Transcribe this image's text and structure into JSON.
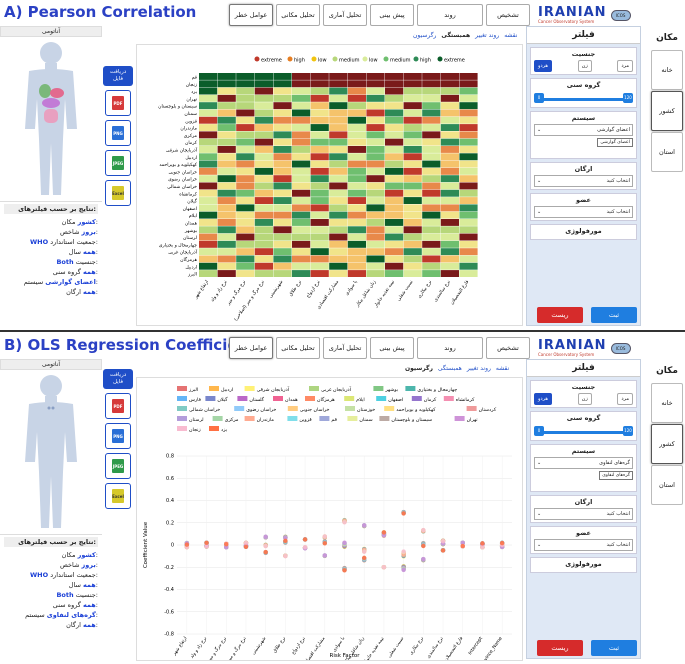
{
  "panels": [
    {
      "id": "A",
      "title": "A) Pearson Correlation",
      "tabs": [
        "عوامل خطر",
        "تحلیل مکانی",
        "تحلیل آماری",
        "پیش بینی",
        "روند",
        "تشخیص"
      ],
      "subtabs": [
        "نقشه",
        "روند تغییر",
        "همبستگی",
        "رگرسیون"
      ],
      "active_subtab": "همبستگی",
      "sidebar_head": "آناتومی",
      "results_head": "نتایج بر حسب فیلترهای:",
      "results": [
        {
          "k": "مکان:",
          "v": "کشور"
        },
        {
          "k": "شاخص:",
          "v": "بروز"
        },
        {
          "k": "جمعیت استاندارد:",
          "v": "WHO"
        },
        {
          "k": "سال:",
          "v": "همه"
        },
        {
          "k": "جنسیت:",
          "v": "Both"
        },
        {
          "k": "گروه سنی:",
          "v": "همه"
        },
        {
          "k": "سیستم:",
          "v": "اعضای گوارشی"
        },
        {
          "k": "ارگان:",
          "v": "همه"
        }
      ],
      "system_select": "اعضای گوارشی",
      "system_chip": "اعضای گوارشی"
    },
    {
      "id": "B",
      "title": "B) OLS Regression Coefficients",
      "tabs": [
        "عوامل خطر",
        "تحلیل مکانی",
        "تحلیل آماری",
        "پیش بینی",
        "روند",
        "تشخیص"
      ],
      "subtabs": [
        "نقشه",
        "روند تغییر",
        "همبستگی",
        "رگرسیون"
      ],
      "active_subtab": "رگرسیون",
      "sidebar_head": "آناتومی",
      "results_head": "نتایج بر حسب فیلترهای:",
      "results": [
        {
          "k": "مکان:",
          "v": "کشور"
        },
        {
          "k": "شاخص:",
          "v": "بروز"
        },
        {
          "k": "جمعیت استاندارد:",
          "v": "WHO"
        },
        {
          "k": "سال:",
          "v": "همه"
        },
        {
          "k": "جنسیت:",
          "v": "Both"
        },
        {
          "k": "گروه سنی:",
          "v": "همه"
        },
        {
          "k": "سیستم:",
          "v": "گره‌های لنفاوی"
        },
        {
          "k": "ارگان:",
          "v": "همه"
        }
      ],
      "system_select": "گره‌های لنفاوی",
      "system_chip": "گره‌های لنفاوی"
    }
  ],
  "logo": {
    "text": "IRANIAN",
    "sub": "Cancer Observatory System",
    "badge": "ICOS"
  },
  "export": {
    "head": "دریافت فایل",
    "items": [
      {
        "label": "PDF",
        "color": "#d63a3a"
      },
      {
        "label": "PNG",
        "color": "#2a6fd6"
      },
      {
        "label": "JPEG",
        "color": "#2f9a4a"
      },
      {
        "label": "Excel",
        "color": "#d6c92a"
      }
    ]
  },
  "filter": {
    "title": "فیلتر",
    "gender_label": "جنسیت",
    "gender_opts": [
      "مرد",
      "زن",
      "هردو"
    ],
    "age_label": "گروه سنی",
    "age_min": "0",
    "age_max": "120",
    "system_label": "سیستم",
    "organ_label": "ارگان",
    "organ_select": "انتخاب کنید",
    "member_label": "عضو",
    "member_select": "انتخاب کنید",
    "morph_label": "مورفولوژی",
    "reset": "ریست",
    "apply": "ثبت"
  },
  "vtabs": {
    "title": "مکان",
    "items": [
      "خانه",
      "کشور",
      "استان"
    ],
    "active": "کشور"
  },
  "heatmap": {
    "legend": [
      "extreme",
      "high",
      "low",
      "medium",
      "low",
      "medium",
      "high",
      "extreme"
    ],
    "legend_colors": [
      "#c0392b",
      "#e67e22",
      "#f1c40f",
      "#b7d77a",
      "#d9ec9a",
      "#6fbf6f",
      "#2e8b57",
      "#0b5d2a"
    ],
    "rows": [
      "قم",
      "زنجان",
      "یزد",
      "تهران",
      "سیستان و بلوچستان",
      "سمنان",
      "قزوین",
      "مازندران",
      "مرکزی",
      "کرمان",
      "آذربایجان شرقی",
      "اردبیل",
      "کهکیلویه و بویراحمد",
      "خراسان جنوبی",
      "خراسان رضوی",
      "خراسان شمالی",
      "کرمانشاه",
      "گیلان",
      "اصفهان",
      "ایلام",
      "همدان",
      "بوشهر",
      "لرستان",
      "چهارمحال و بختیاری",
      "آذربایجان غربی",
      "هرمزگان",
      "اردبیل",
      "البرز"
    ],
    "cols": [
      "ارتفاع شهر",
      "نرخ زاد و ولد",
      "نرخ مرگ و میر",
      "نرخ مرگ و میر (اصلاحی)",
      "شهرنشینی",
      "نرخ طلاق",
      "نرخ ازدواج",
      "مشارکت اقتصادی",
      "با سوادی",
      "زنان شاغل بیکار",
      "نیمه تغذیه خانوار",
      "نسبت شغلی",
      "نرخ بیکاری",
      "نرخ سالمندی",
      "فارغ التحصیلان"
    ]
  },
  "scatter": {
    "type": "scatter",
    "ylabel": "Coefficient Value",
    "xlabel": "Risk Factor",
    "ylim": [
      -0.8,
      0.8
    ],
    "yticks": [
      "0.8",
      "0.6",
      "0.4",
      "0.2",
      "0",
      "-0.2",
      "-0.4",
      "-0.6",
      "-0.8"
    ],
    "categories": [
      "ارتفاع شهر",
      "نرخ زاد و ولد",
      "نرخ مرگ و میر",
      "نرخ مرگ و میر (اصلاحی)",
      "شهرنشینی",
      "نرخ طلاق",
      "نرخ ازدواج",
      "مشارکت اقتصادی",
      "با سوادی",
      "زنان شاغل بیکار",
      "نیمه تغذیه خانوار",
      "نسبت شغلی",
      "نرخ بیکاری",
      "نرخ سالمندی",
      "فارغ التحصیلان",
      "Intercept",
      "Province_Name"
    ],
    "legend": [
      {
        "name": "البرز",
        "color": "#e57373"
      },
      {
        "name": "اردبیل",
        "color": "#ffb74d"
      },
      {
        "name": "آذربایجان شرقی",
        "color": "#fff176"
      },
      {
        "name": "آذربایجان غربی",
        "color": "#aed581"
      },
      {
        "name": "بوشهر",
        "color": "#81c784"
      },
      {
        "name": "چهارمحال و بختیاری",
        "color": "#4db6ac"
      },
      {
        "name": "فارس",
        "color": "#64b5f6"
      },
      {
        "name": "گیلان",
        "color": "#7986cb"
      },
      {
        "name": "گلستان",
        "color": "#ba68c8"
      },
      {
        "name": "همدان",
        "color": "#f06292"
      },
      {
        "name": "هرمزگان",
        "color": "#ff8a65"
      },
      {
        "name": "ایلام",
        "color": "#dce775"
      },
      {
        "name": "اصفهان",
        "color": "#4dd0e1"
      },
      {
        "name": "کرمان",
        "color": "#9575cd"
      },
      {
        "name": "کرمانشاه",
        "color": "#f48fb1"
      },
      {
        "name": "خراسان شمالی",
        "color": "#80cbc4"
      },
      {
        "name": "خراسان رضوی",
        "color": "#90caf9"
      },
      {
        "name": "خراسان جنوبی",
        "color": "#ffcc80"
      },
      {
        "name": "خوزستان",
        "color": "#c5e1a5"
      },
      {
        "name": "کهکیلویه و بویراحمد",
        "color": "#ffe082"
      },
      {
        "name": "کردستان",
        "color": "#ef9a9a"
      },
      {
        "name": "لرستان",
        "color": "#b39ddb"
      },
      {
        "name": "مرکزی",
        "color": "#a5d6a7"
      },
      {
        "name": "مازندران",
        "color": "#ffab91"
      },
      {
        "name": "قزوین",
        "color": "#80deea"
      },
      {
        "name": "قم",
        "color": "#9fa8da"
      },
      {
        "name": "سمنان",
        "color": "#e6ee9c"
      },
      {
        "name": "سیستان و بلوچستان",
        "color": "#bcaaa4"
      },
      {
        "name": "تهران",
        "color": "#ce93d8"
      },
      {
        "name": "زنجان",
        "color": "#f8bbd0"
      },
      {
        "name": "یزد",
        "color": "#ff7043"
      }
    ]
  }
}
